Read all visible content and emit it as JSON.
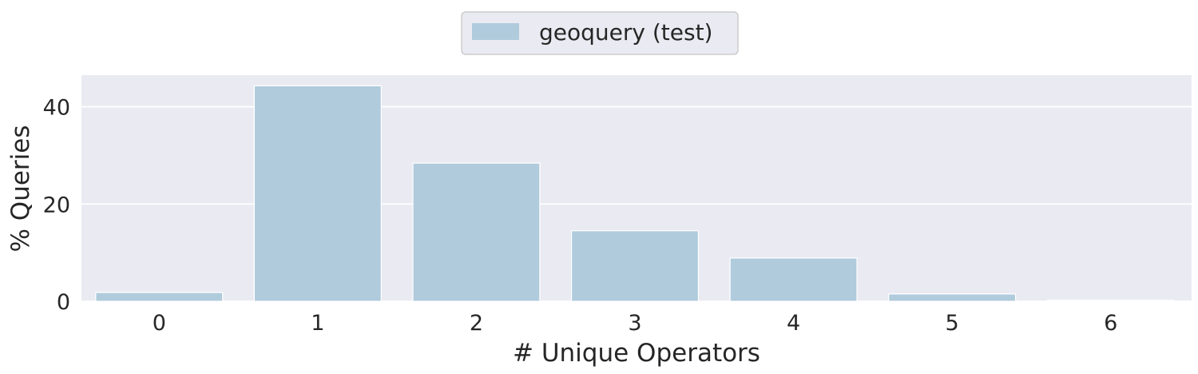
{
  "chart_data": {
    "type": "bar",
    "categories": [
      "0",
      "1",
      "2",
      "3",
      "4",
      "5",
      "6"
    ],
    "series": [
      {
        "name": "geoquery (test)",
        "values": [
          1.8,
          44.3,
          28.4,
          14.5,
          8.9,
          1.5,
          0.2
        ]
      }
    ],
    "xlabel": "# Unique Operators",
    "ylabel": "% Queries",
    "ylim": [
      0,
      46.5
    ],
    "yticks": [
      0,
      20,
      40
    ],
    "grid": true,
    "legend_position": "top-center",
    "colors": {
      "bar": "#afcbdc",
      "plot_background": "#eaeaf2",
      "grid": "#ffffff",
      "text": "#262626"
    }
  }
}
